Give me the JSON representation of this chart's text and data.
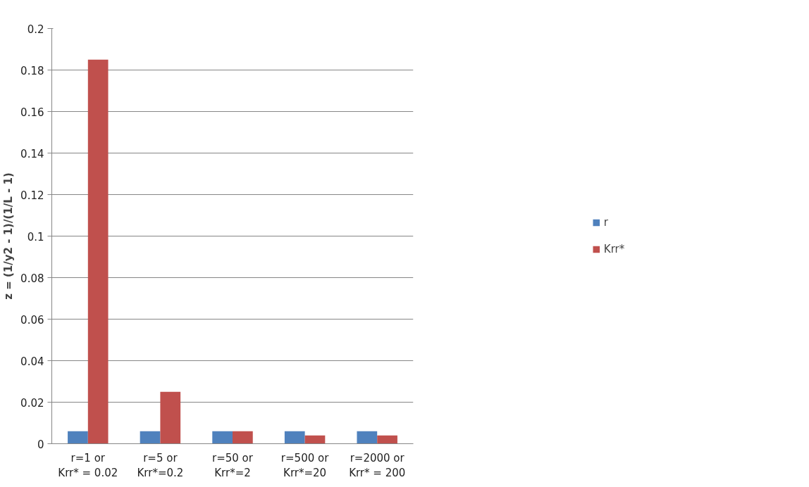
{
  "chart_data": {
    "type": "bar",
    "ylabel": "z = (1/y2 - 1)/(1/L - 1)",
    "categories": [
      "r=1 or\nKrr* = 0.02",
      "r=5 or\nKrr*=0.2",
      "r=50 or\nKrr*=2",
      "r=500 or\nKrr*=20",
      "r=2000 or\nKrr* = 200"
    ],
    "series": [
      {
        "name": "r",
        "color": "#4f81bd",
        "values": [
          0.006,
          0.006,
          0.006,
          0.006,
          0.006
        ]
      },
      {
        "name": "Krr*",
        "color": "#c0504d",
        "values": [
          0.185,
          0.025,
          0.006,
          0.004,
          0.004
        ]
      }
    ],
    "ylim": [
      0,
      0.2
    ],
    "yticks": [
      0,
      0.02,
      0.04,
      0.06,
      0.08,
      0.1,
      0.12,
      0.14,
      0.16,
      0.18,
      0.2
    ],
    "grid": "y",
    "legend": "right"
  }
}
